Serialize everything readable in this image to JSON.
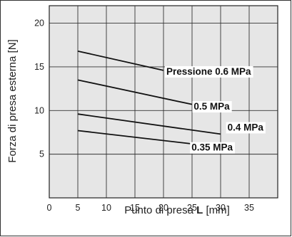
{
  "chart_data": {
    "type": "line",
    "xlabel_prefix": "Punto di presa ",
    "xlabel_bold": "L",
    "xlabel_suffix": " [mm]",
    "ylabel": "Forza di presa esterna [N]",
    "xlim": [
      0,
      40
    ],
    "ylim": [
      0,
      22
    ],
    "x_ticks": [
      0,
      5,
      10,
      15,
      20,
      25,
      30,
      35
    ],
    "y_ticks": [
      5,
      10,
      15,
      20
    ],
    "grid": true,
    "plot_background": "#e6e6e6",
    "series": [
      {
        "name": "Pressione 0.6 MPa",
        "x": [
          5,
          20
        ],
        "y": [
          16.8,
          14.6
        ],
        "label_at": [
          20.5,
          14.1
        ]
      },
      {
        "name": "0.5 MPa",
        "x": [
          5,
          25
        ],
        "y": [
          13.5,
          10.7
        ],
        "label_at": [
          25.3,
          10.1
        ]
      },
      {
        "name": "0.4 MPa",
        "x": [
          5,
          30
        ],
        "y": [
          9.6,
          7.3
        ],
        "label_at": [
          31.2,
          7.7
        ]
      },
      {
        "name": "0.35 MPa",
        "x": [
          5,
          30
        ],
        "y": [
          7.7,
          5.8
        ],
        "label_at": [
          24.9,
          5.4
        ]
      }
    ]
  }
}
